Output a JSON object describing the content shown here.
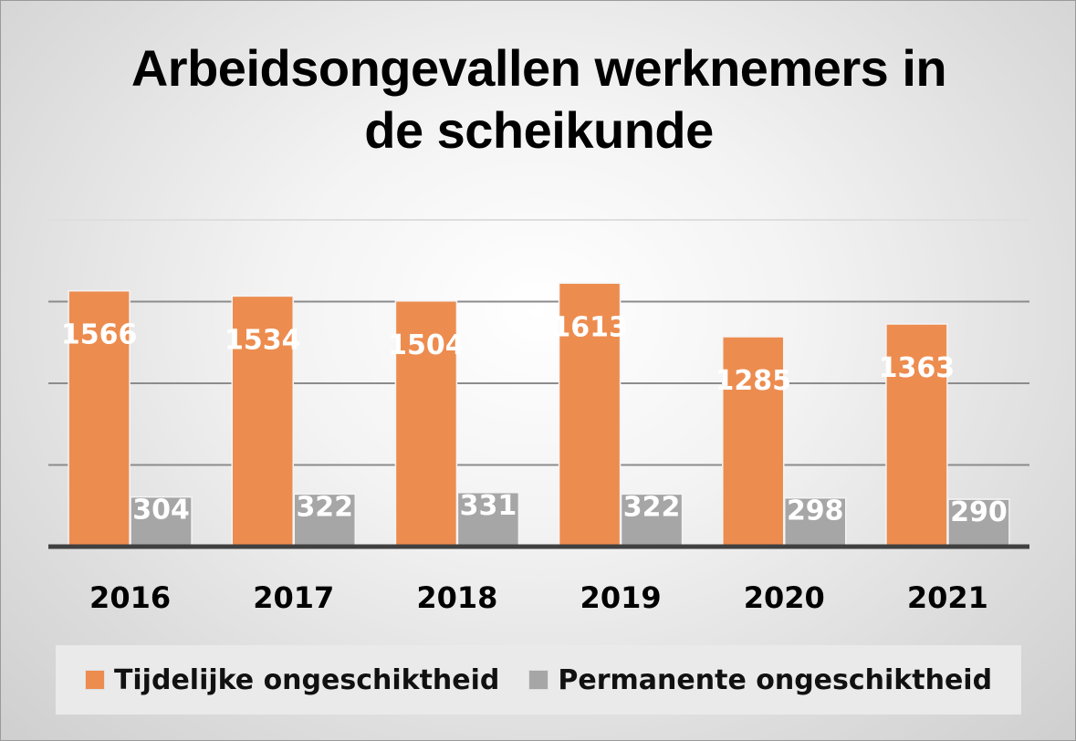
{
  "chart_data": {
    "type": "bar",
    "title": "Arbeidsongevallen werknemers in de scheikunde",
    "title_lines": [
      "Arbeidsongevallen werknemers in",
      "de scheikunde"
    ],
    "categories": [
      "2016",
      "2017",
      "2018",
      "2019",
      "2020",
      "2021"
    ],
    "series": [
      {
        "name": "Tijdelijke ongeschiktheid",
        "color": "#ed8c4f",
        "values": [
          1566,
          1534,
          1504,
          1613,
          1285,
          1363
        ],
        "labels": [
          "1566",
          "1534",
          "1504",
          "1613",
          "1285",
          "1363"
        ]
      },
      {
        "name": "Permanente ongeschiktheid",
        "color": "#a6a6a6",
        "values": [
          304,
          322,
          331,
          322,
          298,
          290
        ],
        "labels": [
          "304",
          "322",
          "331",
          "322",
          "298",
          "290"
        ]
      }
    ],
    "ylim": [
      0,
      2000
    ],
    "gridlines": [
      500,
      1000,
      1500,
      2000
    ],
    "grid": true,
    "xlabel": "",
    "ylabel": "",
    "legend_position": "bottom",
    "axis_color": "#404040"
  }
}
